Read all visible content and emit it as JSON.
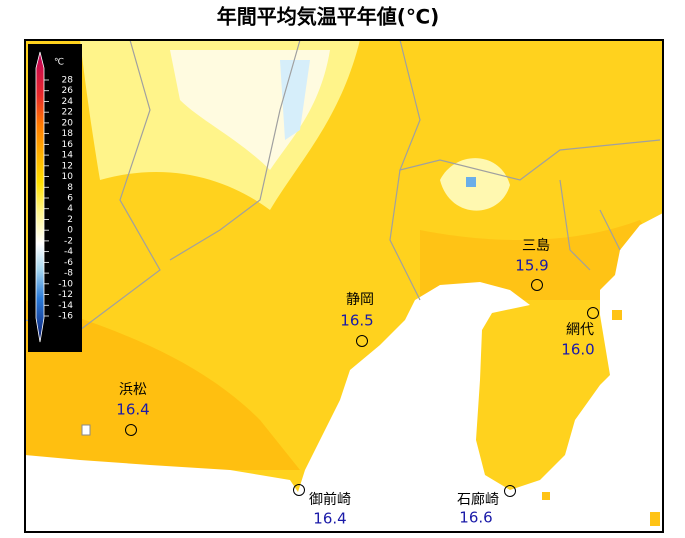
{
  "title": "年間平均気温平年値(℃)",
  "legend": {
    "unit": "℃",
    "ticks": [
      28,
      26,
      24,
      22,
      20,
      18,
      16,
      14,
      12,
      10,
      8,
      6,
      4,
      2,
      0,
      -2,
      -4,
      -6,
      -8,
      -10,
      -12,
      -14,
      -16
    ]
  },
  "stations": [
    {
      "name": "浜松",
      "value": "16.4"
    },
    {
      "name": "静岡",
      "value": "16.5"
    },
    {
      "name": "三島",
      "value": "15.9"
    },
    {
      "name": "網代",
      "value": "16.0"
    },
    {
      "name": "御前崎",
      "value": "16.4"
    },
    {
      "name": "石廊崎",
      "value": "16.6"
    }
  ]
}
